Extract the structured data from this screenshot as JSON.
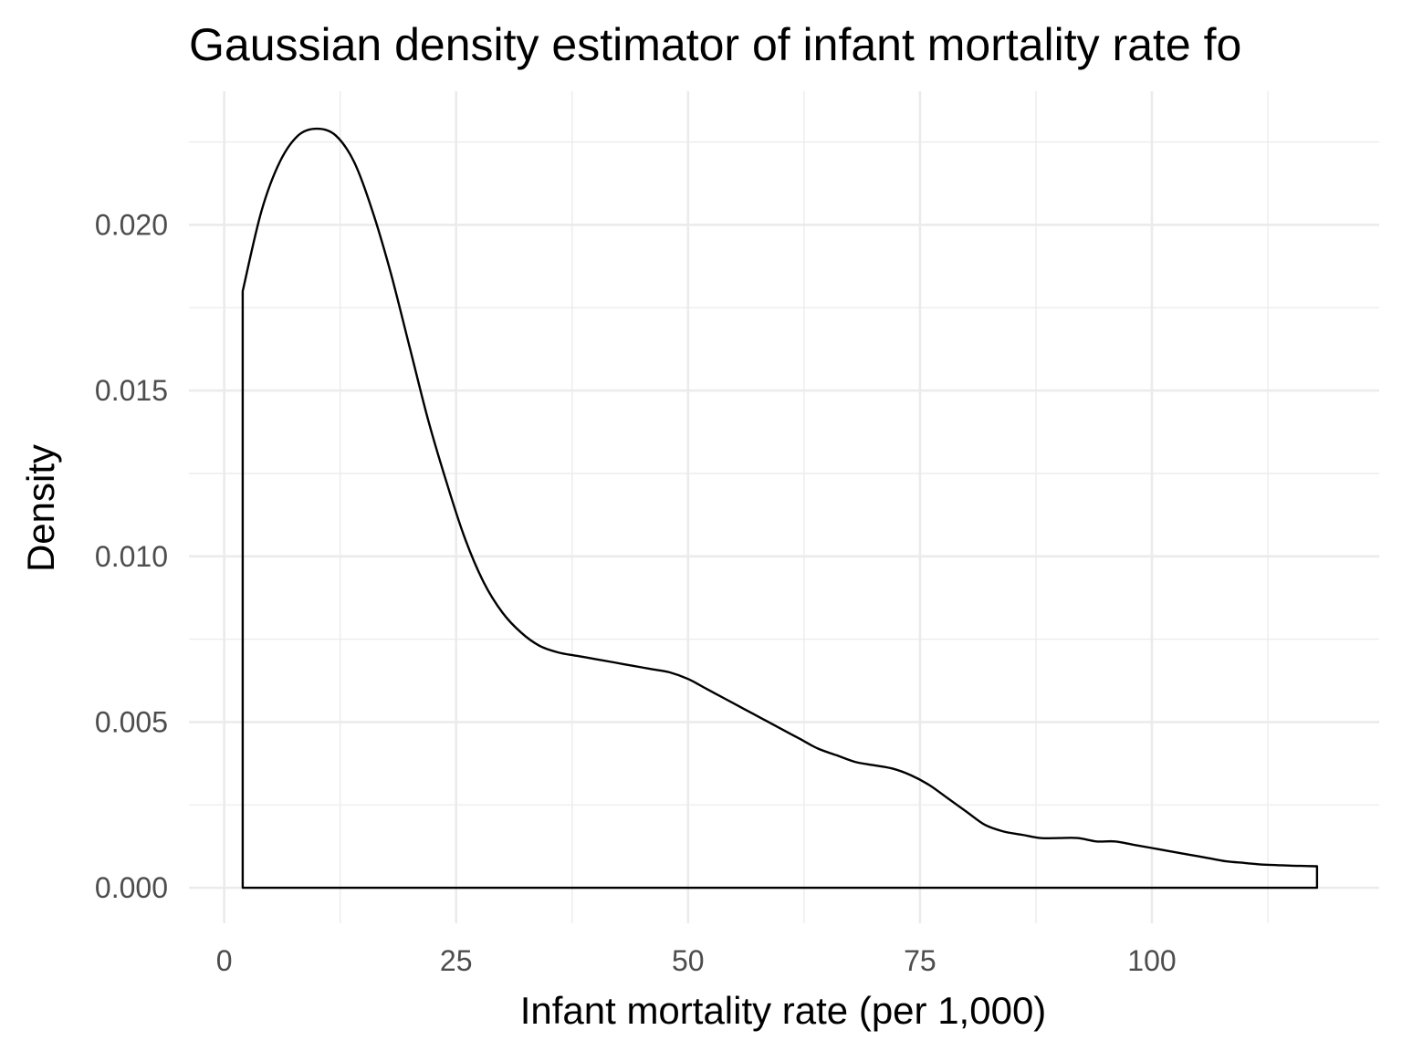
{
  "chart_data": {
    "type": "area",
    "title": "Gaussian density estimator of infant mortality rate fo",
    "xlabel": "Infant mortality rate (per 1,000)",
    "ylabel": "Density",
    "xlim": [
      -3.8,
      124.5
    ],
    "ylim": [
      -0.00107,
      0.02403
    ],
    "x_ticks": [
      0,
      25,
      50,
      75,
      100
    ],
    "x_tick_labels": [
      "0",
      "25",
      "50",
      "75",
      "100"
    ],
    "x_minor_ticks": [
      12.5,
      37.5,
      62.5,
      87.5,
      112.5
    ],
    "y_ticks": [
      0,
      0.005,
      0.01,
      0.015,
      0.02
    ],
    "y_tick_labels": [
      "0.000",
      "0.005",
      "0.010",
      "0.015",
      "0.020"
    ],
    "y_minor_ticks": [
      0.0025,
      0.0075,
      0.0125,
      0.0175,
      0.0225
    ],
    "grid": true,
    "legend": "none",
    "line_color": "#000000",
    "series": [
      {
        "x": [
          2,
          4,
          6,
          8,
          10,
          12,
          14,
          16,
          18,
          20,
          22,
          24,
          26,
          28,
          30,
          32,
          34,
          36,
          38,
          40,
          42,
          44,
          46,
          48,
          50,
          52,
          54,
          56,
          58,
          60,
          62,
          64,
          66,
          68,
          70,
          72,
          74,
          76,
          78,
          80,
          82,
          84,
          86,
          88,
          90,
          92,
          94,
          96,
          98,
          100,
          102,
          104,
          106,
          108,
          110,
          112,
          114,
          116,
          117.8
        ],
        "y": [
          0.018,
          0.0204,
          0.0219,
          0.0227,
          0.0229,
          0.0227,
          0.0219,
          0.0204,
          0.0185,
          0.0163,
          0.0141,
          0.0122,
          0.0105,
          0.0092,
          0.0083,
          0.0077,
          0.0073,
          0.0071,
          0.007,
          0.0069,
          0.0068,
          0.0067,
          0.0066,
          0.0065,
          0.0063,
          0.006,
          0.0057,
          0.0054,
          0.0051,
          0.0048,
          0.0045,
          0.0042,
          0.004,
          0.0038,
          0.0037,
          0.0036,
          0.0034,
          0.0031,
          0.0027,
          0.0023,
          0.0019,
          0.0017,
          0.0016,
          0.0015,
          0.0015,
          0.0015,
          0.0014,
          0.0014,
          0.0013,
          0.0012,
          0.0011,
          0.001,
          0.0009,
          0.0008,
          0.00075,
          0.0007,
          0.00068,
          0.00066,
          0.00065
        ]
      }
    ]
  }
}
